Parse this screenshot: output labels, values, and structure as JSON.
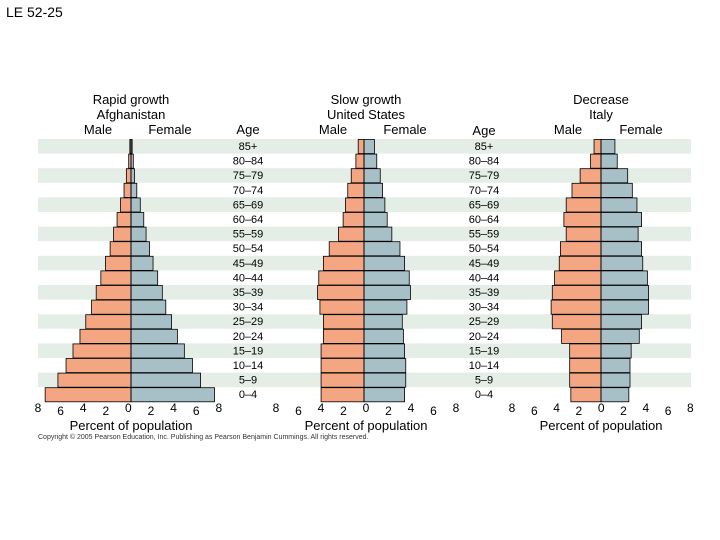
{
  "slide_title": "LE 52-25",
  "age_header": "Age",
  "age_groups": [
    "85+",
    "80–84",
    "75–79",
    "70–74",
    "65–69",
    "60–64",
    "55–59",
    "50–54",
    "45–49",
    "40–44",
    "35–39",
    "30–34",
    "25–29",
    "20–24",
    "15–19",
    "10–14",
    "5–9",
    "0–4"
  ],
  "axis_label": "Percent of population",
  "copyright": "Copyright © 2005 Pearson Education, Inc. Publishing as Pearson Benjamin Cummings. All rights reserved.",
  "colors": {
    "male": "#f4a582",
    "female": "#a7c0c8",
    "stripe": "#e4eee6"
  },
  "chart_data": [
    {
      "type": "bar",
      "subtype": "population-pyramid",
      "title_lines": [
        "Rapid growth",
        "Afghanistan"
      ],
      "male_label": "Male",
      "female_label": "Female",
      "xlim": [
        -8,
        8
      ],
      "x_tick_labels": [
        "8",
        "6",
        "4",
        "2",
        "0",
        "2",
        "4",
        "6",
        "8"
      ],
      "xlabel": "Percent of population",
      "categories": [
        "85+",
        "80–84",
        "75–79",
        "70–74",
        "65–69",
        "60–64",
        "55–59",
        "50–54",
        "45–49",
        "40–44",
        "35–39",
        "30–34",
        "25–29",
        "20–24",
        "15–19",
        "10–14",
        "5–9",
        "0–4"
      ],
      "series": [
        {
          "name": "Male",
          "values": [
            0.1,
            0.2,
            0.4,
            0.6,
            0.9,
            1.2,
            1.5,
            1.8,
            2.2,
            2.6,
            3.0,
            3.4,
            3.9,
            4.4,
            5.0,
            5.6,
            6.3,
            7.4
          ]
        },
        {
          "name": "Female",
          "values": [
            0.1,
            0.2,
            0.3,
            0.5,
            0.8,
            1.1,
            1.3,
            1.6,
            1.9,
            2.3,
            2.7,
            3.0,
            3.5,
            4.0,
            4.6,
            5.3,
            6.0,
            7.2
          ]
        }
      ]
    },
    {
      "type": "bar",
      "subtype": "population-pyramid",
      "title_lines": [
        "Slow growth",
        "United States"
      ],
      "male_label": "Male",
      "female_label": "Female",
      "xlim": [
        -8,
        8
      ],
      "x_tick_labels": [
        "8",
        "6",
        "4",
        "2",
        "0",
        "2",
        "4",
        "6",
        "8"
      ],
      "xlabel": "Percent of population",
      "categories": [
        "85+",
        "80–84",
        "75–79",
        "70–74",
        "65–69",
        "60–64",
        "55–59",
        "50–54",
        "45–49",
        "40–44",
        "35–39",
        "30–34",
        "25–29",
        "20–24",
        "15–19",
        "10–14",
        "5–9",
        "0–4"
      ],
      "series": [
        {
          "name": "Male",
          "values": [
            0.5,
            0.7,
            1.1,
            1.4,
            1.6,
            1.8,
            2.2,
            3.0,
            3.5,
            3.9,
            4.0,
            3.8,
            3.5,
            3.5,
            3.7,
            3.7,
            3.7,
            3.7
          ]
        },
        {
          "name": "Female",
          "values": [
            0.9,
            1.1,
            1.4,
            1.6,
            1.8,
            2.0,
            2.4,
            3.1,
            3.5,
            3.9,
            4.0,
            3.7,
            3.3,
            3.4,
            3.5,
            3.6,
            3.6,
            3.5
          ]
        }
      ]
    },
    {
      "type": "bar",
      "subtype": "population-pyramid",
      "title_lines": [
        "Decrease",
        "Italy"
      ],
      "male_label": "Male",
      "female_label": "Female",
      "xlim": [
        -8,
        8
      ],
      "x_tick_labels": [
        "8",
        "6",
        "4",
        "2",
        "0",
        "2",
        "4",
        "6",
        "8"
      ],
      "xlabel": "Percent of population",
      "categories": [
        "85+",
        "80–84",
        "75–79",
        "70–74",
        "65–69",
        "60–64",
        "55–59",
        "50–54",
        "45–49",
        "40–44",
        "35–39",
        "30–34",
        "25–29",
        "20–24",
        "15–19",
        "10–14",
        "5–9",
        "0–4"
      ],
      "series": [
        {
          "name": "Male",
          "values": [
            0.6,
            0.9,
            1.8,
            2.5,
            3.0,
            3.2,
            3.0,
            3.5,
            3.6,
            4.0,
            4.2,
            4.3,
            4.2,
            3.4,
            2.7,
            2.7,
            2.7,
            2.6
          ]
        },
        {
          "name": "Female",
          "values": [
            1.2,
            1.4,
            2.3,
            2.7,
            3.1,
            3.5,
            3.2,
            3.5,
            3.6,
            4.0,
            4.1,
            4.1,
            3.5,
            3.3,
            2.6,
            2.5,
            2.5,
            2.4
          ]
        }
      ]
    }
  ]
}
